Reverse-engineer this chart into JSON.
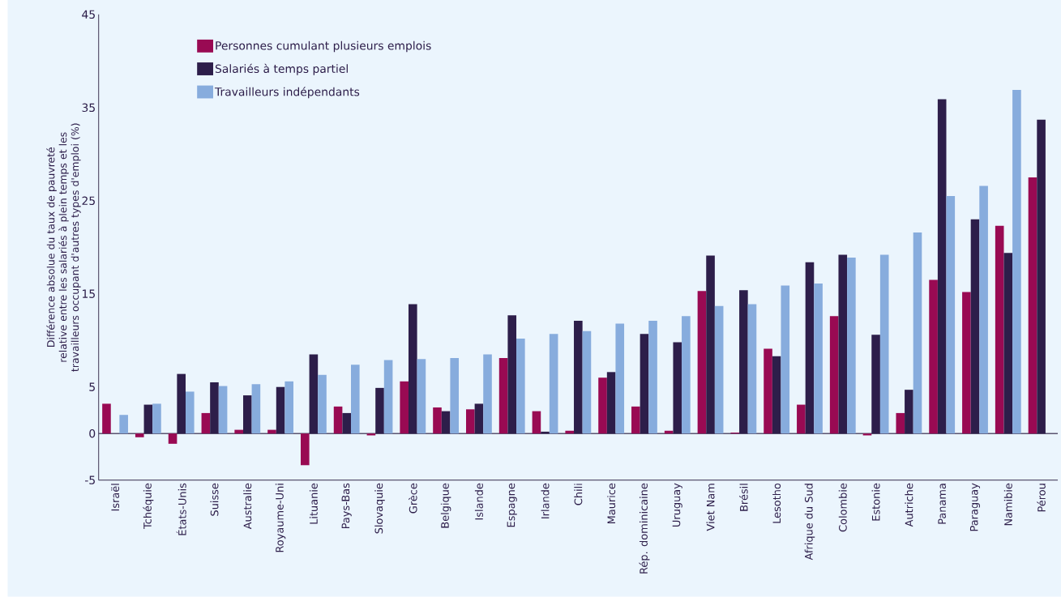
{
  "chart_data": {
    "type": "bar",
    "ylabel": "Différence absolue du taux de pauvreté relative entre les salariés à plein temps et les travailleurs occupant d'autres types d'emploi (%)",
    "categories": [
      "Israël",
      "Tchéquie",
      "États-Unis",
      "Suisse",
      "Australie",
      "Royaume-Uni",
      "Lituanie",
      "Pays-Bas",
      "Slovaquie",
      "Grèce",
      "Belgique",
      "Islande",
      "Espagne",
      "Irlande",
      "Chili",
      "Maurice",
      "Rép. dominicaine",
      "Uruguay",
      "Viet Nam",
      "Brésil",
      "Lesotho",
      "Afrique du Sud",
      "Colombie",
      "Estonie",
      "Autriche",
      "Panama",
      "Paraguay",
      "Namibie",
      "Pérou"
    ],
    "series": [
      {
        "name": "Personnes cumulant plusieurs emplois",
        "color": "#990a53",
        "values": [
          3.2,
          -0.4,
          -1.1,
          2.2,
          0.4,
          0.4,
          -3.4,
          2.9,
          -0.2,
          5.6,
          2.8,
          2.6,
          8.1,
          2.4,
          0.3,
          6.0,
          2.9,
          0.3,
          15.3,
          0.1,
          9.1,
          3.1,
          12.6,
          -0.2,
          2.2,
          16.5,
          15.2,
          22.3,
          27.5
        ]
      },
      {
        "name": "Salariés à temps partiel",
        "color": "#2d1e4a",
        "values": [
          null,
          3.1,
          6.4,
          5.5,
          4.1,
          5.0,
          8.5,
          2.2,
          4.9,
          13.9,
          2.4,
          3.2,
          12.7,
          0.2,
          12.1,
          6.6,
          10.7,
          9.8,
          19.1,
          15.4,
          8.3,
          18.4,
          19.2,
          10.6,
          4.7,
          35.9,
          23.0,
          19.4,
          33.7
        ]
      },
      {
        "name": "Travailleurs indépendants",
        "color": "#87acdd",
        "values": [
          2.0,
          3.2,
          4.5,
          5.1,
          5.3,
          5.6,
          6.3,
          7.4,
          7.9,
          8.0,
          8.1,
          8.5,
          10.2,
          10.7,
          11.0,
          11.8,
          12.1,
          12.6,
          13.7,
          13.9,
          15.9,
          16.1,
          18.9,
          19.2,
          21.6,
          25.5,
          26.6,
          36.9,
          null
        ]
      }
    ],
    "ylim": [
      -5,
      45
    ],
    "yticks": [
      45,
      35,
      25,
      15,
      5,
      0,
      -5
    ],
    "ref_lines": [
      {
        "axis": "y",
        "value": 0,
        "color": "#5a5470"
      }
    ],
    "legend": "top left"
  }
}
